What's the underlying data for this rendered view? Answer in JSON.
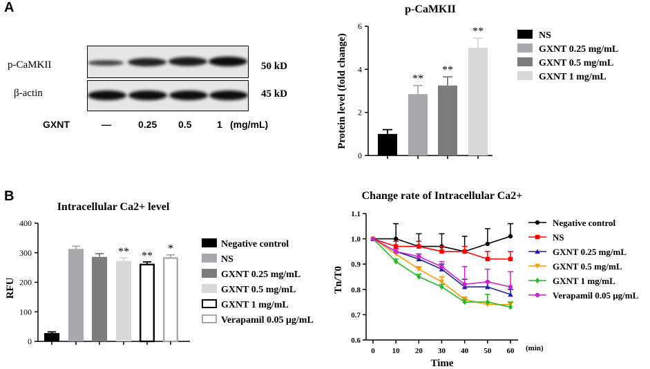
{
  "panelA": {
    "letter": "A",
    "blot": {
      "row1_label": "p-CaMKII",
      "row2_label": "β-actin",
      "row1_kd": "50 kD",
      "row2_kd": "45 kD",
      "gxnt_label": "GXNT",
      "doses": [
        "—",
        "0.25",
        "0.5",
        "1"
      ],
      "unit": "(mg/mL)"
    }
  },
  "panelB": {
    "letter": "B"
  },
  "chart_data": [
    {
      "type": "bar",
      "title": "p-CaMKII",
      "xlabel": "",
      "ylabel": "Protein level (fold change)",
      "ylim": [
        0,
        6
      ],
      "yticks": [
        "0",
        "2",
        "4",
        "6"
      ],
      "categories": [
        "NS",
        "GXNT 0.25 mg/mL",
        "GXNT 0.5 mg/mL",
        "GXNT 1 mg/mL"
      ],
      "values": [
        1.0,
        2.85,
        3.25,
        5.0
      ],
      "errors": [
        0.2,
        0.4,
        0.4,
        0.45
      ],
      "significance": [
        "",
        "**",
        "**",
        "**"
      ],
      "colors": [
        "#000000",
        "#a8a8ad",
        "#7c7c7c",
        "#d8d8d8"
      ],
      "legend": [
        "NS",
        "GXNT 0.25 mg/mL",
        "GXNT 0.5 mg/mL",
        "GXNT 1 mg/mL"
      ]
    },
    {
      "type": "bar",
      "title": "Intracellular Ca2+ level",
      "xlabel": "",
      "ylabel": "RFU",
      "ylim": [
        0,
        400
      ],
      "yticks": [
        "0",
        "100",
        "200",
        "300",
        "400"
      ],
      "categories": [
        "Negative control",
        "NS",
        "GXNT 0.25 mg/mL",
        "GXNT 0.5 mg/mL",
        "GXNT 1 mg/mL",
        "Verapamil 0.05 μg/mL"
      ],
      "values": [
        28,
        313,
        286,
        272,
        260,
        282
      ],
      "errors": [
        4,
        9,
        11,
        11,
        9,
        11
      ],
      "significance": [
        "",
        "",
        "",
        "**",
        "**",
        "*"
      ],
      "fills": [
        "#000000",
        "#a8a8ad",
        "#7c7c7c",
        "#d8d8d8",
        "#ffffff",
        "#ffffff"
      ],
      "strokes": [
        "#000000",
        "#a8a8ad",
        "#7c7c7c",
        "#d8d8d8",
        "#000000",
        "#a8a8a8"
      ],
      "legend": [
        "Negative control",
        "NS",
        "GXNT 0.25 mg/mL",
        "GXNT 0.5 mg/mL",
        "GXNT 1 mg/mL",
        "Verapamil 0.05 μg/mL"
      ]
    },
    {
      "type": "line",
      "title": "Change rate of Intracellular Ca2+",
      "xlabel": "Time",
      "xunit": "(min)",
      "ylabel": "Tn/T0",
      "xlim": [
        0,
        60
      ],
      "ylim": [
        0.6,
        1.1
      ],
      "xticks": [
        "0",
        "10",
        "20",
        "30",
        "40",
        "50",
        "60"
      ],
      "yticks": [
        "0.6",
        "0.7",
        "0.8",
        "0.9",
        "1.0",
        "1.1"
      ],
      "x": [
        0,
        10,
        20,
        30,
        40,
        50,
        60
      ],
      "series": [
        {
          "name": "Negative control",
          "color": "#000000",
          "marker": "circle",
          "values": [
            1.0,
            1.0,
            0.97,
            0.97,
            0.95,
            0.98,
            1.01
          ],
          "errors": [
            0,
            0.06,
            0.05,
            0.05,
            0.06,
            0.06,
            0.05
          ]
        },
        {
          "name": "NS",
          "color": "#ff0000",
          "marker": "square",
          "values": [
            1.0,
            0.97,
            0.97,
            0.95,
            0.95,
            0.92,
            0.92
          ],
          "errors": [
            0,
            0.02,
            0.02,
            0.02,
            0.02,
            0.03,
            0.03
          ]
        },
        {
          "name": "GXNT 0.25 mg/mL",
          "color": "#1e1eaa",
          "marker": "triangle",
          "values": [
            1.0,
            0.95,
            0.92,
            0.88,
            0.81,
            0.81,
            0.78
          ],
          "errors": [
            0,
            0.01,
            0.02,
            0.02,
            0.03,
            0.02,
            0.02
          ]
        },
        {
          "name": "GXNT 0.5 mg/mL",
          "color": "#ff9900",
          "marker": "triangle-down",
          "values": [
            1.0,
            0.94,
            0.88,
            0.83,
            0.76,
            0.74,
            0.74
          ],
          "errors": [
            0,
            0.01,
            0.01,
            0.02,
            0.01,
            0.01,
            0.01
          ]
        },
        {
          "name": "GXNT 1 mg/mL",
          "color": "#22bb22",
          "marker": "diamond",
          "values": [
            1.0,
            0.91,
            0.85,
            0.81,
            0.75,
            0.75,
            0.73
          ],
          "errors": [
            0,
            0.01,
            0.01,
            0.01,
            0.01,
            0.03,
            0.02
          ]
        },
        {
          "name": "Verapamil 0.05 μg/mL",
          "color": "#cc22cc",
          "marker": "circle",
          "values": [
            1.0,
            0.95,
            0.93,
            0.89,
            0.82,
            0.83,
            0.81
          ],
          "errors": [
            0,
            0.01,
            0.01,
            0.02,
            0.07,
            0.05,
            0.06
          ]
        }
      ],
      "legend": [
        "Negative control",
        "NS",
        "GXNT 0.25 mg/mL",
        "GXNT 0.5 mg/mL",
        "GXNT 1 mg/mL",
        "Verapamil 0.05 μg/mL"
      ]
    }
  ]
}
